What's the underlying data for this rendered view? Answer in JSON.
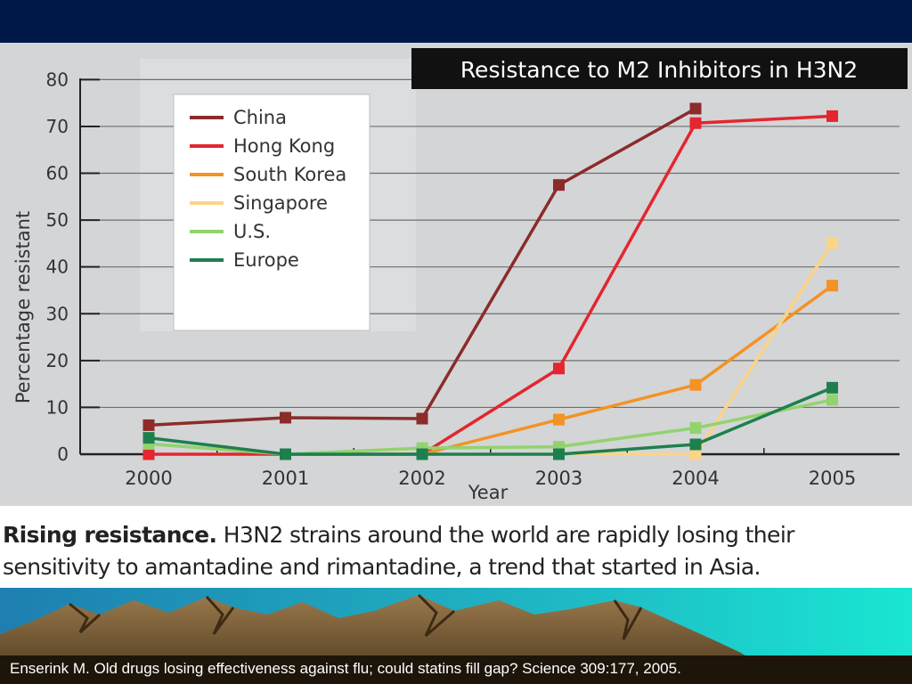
{
  "chart_data": {
    "type": "line",
    "title": "Resistance to M2 Inhibitors in H3N2",
    "xlabel": "Year",
    "ylabel": "Percentage resistant",
    "x": [
      "2000",
      "2001",
      "2002",
      "2003",
      "2004",
      "2005"
    ],
    "ylim": [
      0,
      80
    ],
    "yticks": [
      "0",
      "10",
      "20",
      "30",
      "40",
      "50",
      "60",
      "70",
      "80"
    ],
    "grid": true,
    "legend_position": "top-left",
    "series": [
      {
        "name": "China",
        "color": "#8b2c2a",
        "values": [
          6.2,
          7.8,
          7.6,
          57.5,
          73.8,
          null
        ]
      },
      {
        "name": "Hong Kong",
        "color": "#e3262f",
        "values": [
          0,
          0,
          0,
          18.3,
          70.7,
          72.2
        ]
      },
      {
        "name": "South Korea",
        "color": "#f39323",
        "values": [
          null,
          null,
          0,
          7.4,
          14.8,
          36.0
        ]
      },
      {
        "name": "Singapore",
        "color": "#fbd486",
        "values": [
          null,
          null,
          0,
          0,
          0,
          45.1
        ]
      },
      {
        "name": "U.S.",
        "color": "#92d36e",
        "values": [
          2.2,
          0,
          1.3,
          1.6,
          5.6,
          11.6
        ]
      },
      {
        "name": "Europe",
        "color": "#1e7f4e",
        "values": [
          3.5,
          0,
          0,
          0,
          2.1,
          14.2
        ]
      }
    ]
  },
  "caption": {
    "lead": "Rising resistance.",
    "text": " H3N2 strains around the world are rapidly losing their sensitivity to amantadine and rimantadine, a trend that started in Asia."
  },
  "citation": "Enserink M. Old drugs losing effectiveness against flu; could statins fill gap? Science 309:177, 2005.",
  "colors": {
    "background_navy": "#001848",
    "plot_background": "#d4d5d7",
    "teal": "#1fb7c4",
    "mountain_brown": "#7a5a36"
  }
}
